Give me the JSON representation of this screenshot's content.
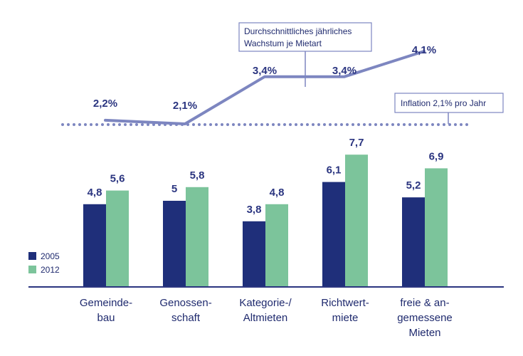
{
  "chart_data": {
    "type": "bar",
    "categories": [
      [
        "Gemeinde-",
        "bau"
      ],
      [
        "Genossen-",
        "schaft"
      ],
      [
        "Kategorie-/",
        "Altmieten"
      ],
      [
        "Richtwert-",
        "miete"
      ],
      [
        "freie & an-",
        "gemessene",
        "Mieten"
      ]
    ],
    "series": [
      {
        "name": "2005",
        "color": "#1f2f7a",
        "values": [
          4.8,
          5,
          3.8,
          6.1,
          5.2
        ],
        "labels": [
          "4,8",
          "5",
          "3,8",
          "6,1",
          "5,2"
        ]
      },
      {
        "name": "2012",
        "color": "#7cc49b",
        "values": [
          5.6,
          5.8,
          4.8,
          7.7,
          6.9
        ],
        "labels": [
          "5,6",
          "5,8",
          "4,8",
          "7,7",
          "6,9"
        ]
      }
    ],
    "ylim": [
      0,
      8.5
    ],
    "growth_line": {
      "color": "#7d86c0",
      "values": [
        2.2,
        2.1,
        3.4,
        3.4,
        4.1
      ],
      "labels": [
        "2,2%",
        "2,1%",
        "3,4%",
        "3,4%",
        "4,1%"
      ]
    },
    "inflation_line": {
      "value": 2.1,
      "label": "Inflation 2,1% pro Jahr"
    },
    "growth_label": [
      "Durchschnittliches jährliches",
      "Wachstum je Mietart"
    ]
  }
}
